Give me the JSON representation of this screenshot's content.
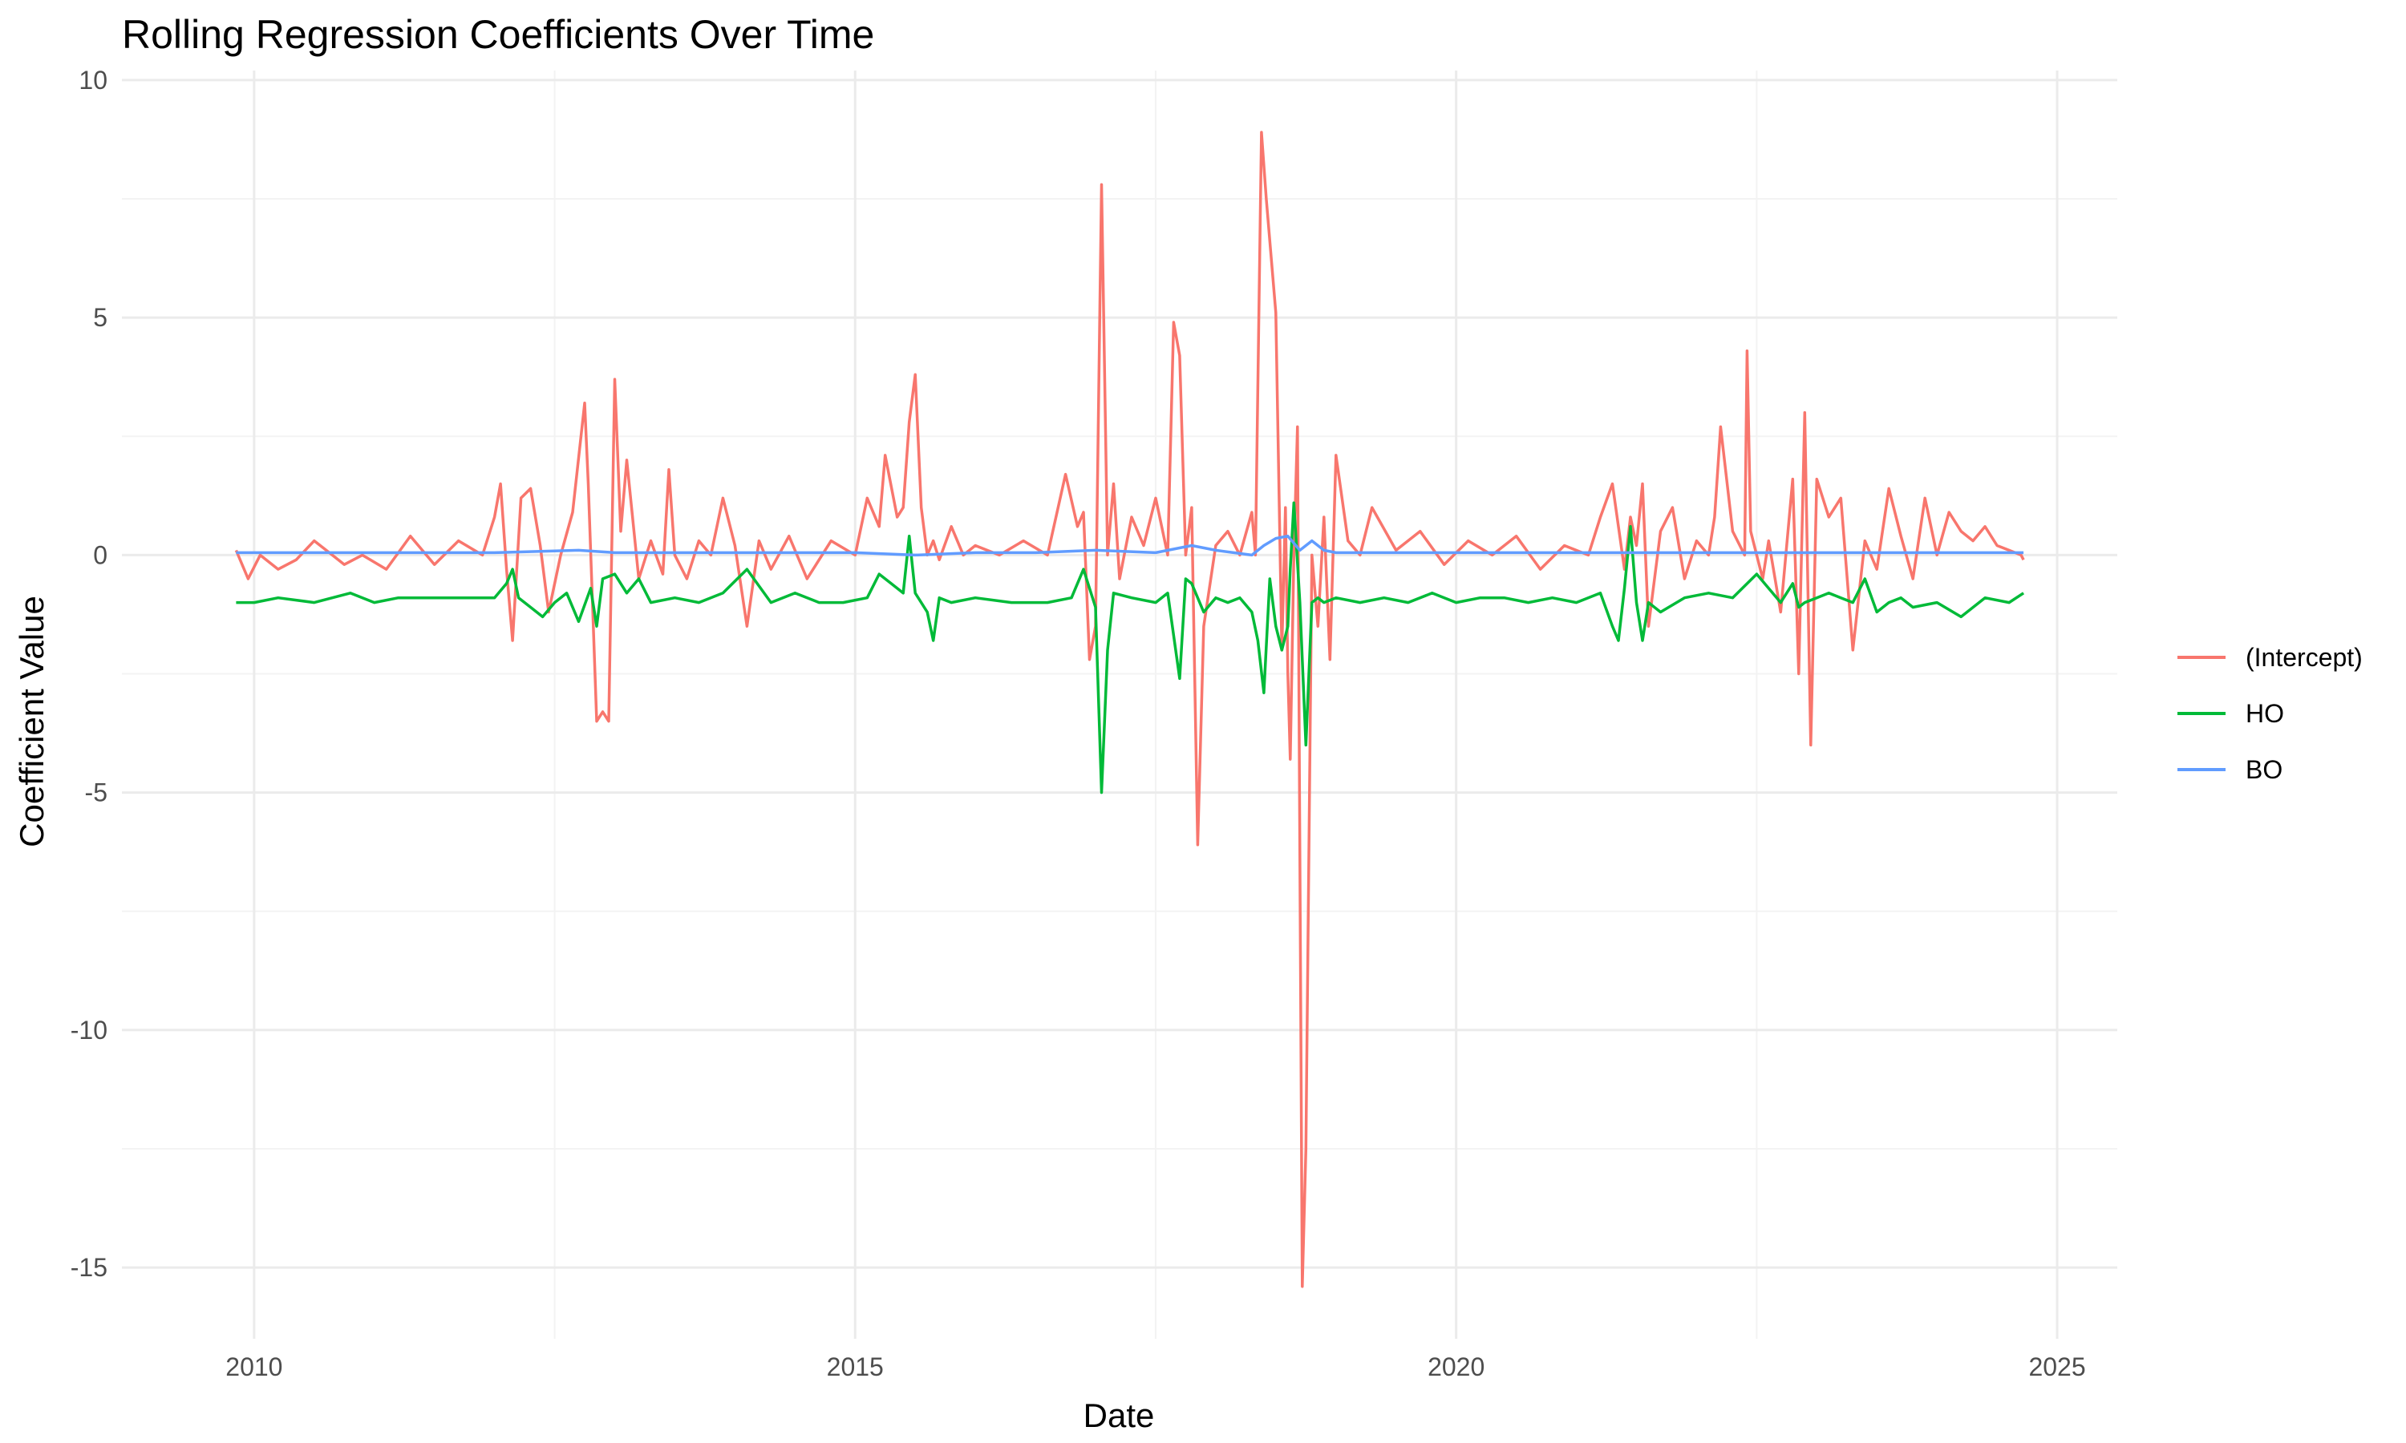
{
  "chart_data": {
    "type": "line",
    "title": "Rolling Regression Coefficients Over Time",
    "xlabel": "Date",
    "ylabel": "Coefficient Value",
    "xlim": [
      2008.9,
      2025.5
    ],
    "ylim": [
      -16.5,
      10.2
    ],
    "x_ticks": [
      2010,
      2015,
      2020,
      2025
    ],
    "x_tick_labels": [
      "2010",
      "2015",
      "2020",
      "2025"
    ],
    "y_ticks": [
      10,
      5,
      0,
      -5,
      -10,
      -15
    ],
    "y_tick_labels": [
      "10",
      "5",
      "0",
      "-5",
      "-10",
      "-15"
    ],
    "grid": true,
    "legend_position": "right",
    "series": [
      {
        "name": "(Intercept)",
        "color": "#F8766D",
        "x": [
          2009.85,
          2009.95,
          2010.05,
          2010.2,
          2010.35,
          2010.5,
          2010.6,
          2010.75,
          2010.9,
          2011.1,
          2011.3,
          2011.5,
          2011.7,
          2011.9,
          2012.0,
          2012.05,
          2012.1,
          2012.15,
          2012.22,
          2012.3,
          2012.38,
          2012.45,
          2012.55,
          2012.65,
          2012.75,
          2012.78,
          2012.85,
          2012.9,
          2012.95,
          2013.0,
          2013.05,
          2013.1,
          2013.2,
          2013.3,
          2013.4,
          2013.45,
          2013.5,
          2013.6,
          2013.7,
          2013.8,
          2013.9,
          2014.0,
          2014.1,
          2014.2,
          2014.3,
          2014.45,
          2014.6,
          2014.8,
          2015.0,
          2015.1,
          2015.2,
          2015.25,
          2015.35,
          2015.4,
          2015.45,
          2015.5,
          2015.55,
          2015.6,
          2015.65,
          2015.7,
          2015.8,
          2015.9,
          2016.0,
          2016.2,
          2016.4,
          2016.6,
          2016.75,
          2016.85,
          2016.9,
          2016.95,
          2017.0,
          2017.05,
          2017.1,
          2017.15,
          2017.2,
          2017.3,
          2017.4,
          2017.5,
          2017.6,
          2017.65,
          2017.7,
          2017.75,
          2017.8,
          2017.85,
          2017.9,
          2018.0,
          2018.1,
          2018.2,
          2018.3,
          2018.33,
          2018.38,
          2018.42,
          2018.5,
          2018.55,
          2018.58,
          2018.6,
          2018.62,
          2018.65,
          2018.68,
          2018.72,
          2018.75,
          2018.8,
          2018.85,
          2018.9,
          2018.95,
          2019.0,
          2019.1,
          2019.2,
          2019.3,
          2019.5,
          2019.7,
          2019.9,
          2020.1,
          2020.3,
          2020.5,
          2020.7,
          2020.9,
          2021.1,
          2021.2,
          2021.3,
          2021.4,
          2021.45,
          2021.5,
          2021.55,
          2021.6,
          2021.7,
          2021.8,
          2021.9,
          2022.0,
          2022.1,
          2022.15,
          2022.2,
          2022.3,
          2022.4,
          2022.42,
          2022.45,
          2022.5,
          2022.55,
          2022.6,
          2022.7,
          2022.8,
          2022.85,
          2022.9,
          2022.95,
          2023.0,
          2023.1,
          2023.2,
          2023.3,
          2023.4,
          2023.5,
          2023.6,
          2023.7,
          2023.8,
          2023.9,
          2024.0,
          2024.1,
          2024.2,
          2024.3,
          2024.4,
          2024.5,
          2024.6,
          2024.7,
          2024.72
        ],
        "values": [
          0.1,
          -0.5,
          0.0,
          -0.3,
          -0.1,
          0.3,
          0.1,
          -0.2,
          0.0,
          -0.3,
          0.4,
          -0.2,
          0.3,
          0.0,
          0.8,
          1.5,
          -0.3,
          -1.8,
          1.2,
          1.4,
          0.2,
          -1.2,
          0.0,
          0.9,
          3.2,
          1.5,
          -3.5,
          -3.3,
          -3.5,
          3.7,
          0.5,
          2.0,
          -0.5,
          0.3,
          -0.4,
          1.8,
          0.0,
          -0.5,
          0.3,
          0.0,
          1.2,
          0.2,
          -1.5,
          0.3,
          -0.3,
          0.4,
          -0.5,
          0.3,
          0.0,
          1.2,
          0.6,
          2.1,
          0.8,
          1.0,
          2.8,
          3.8,
          1.0,
          0.0,
          0.3,
          -0.1,
          0.6,
          0.0,
          0.2,
          0.0,
          0.3,
          0.0,
          1.7,
          0.6,
          0.9,
          -2.2,
          -1.5,
          7.8,
          0.0,
          1.5,
          -0.5,
          0.8,
          0.2,
          1.2,
          0.0,
          4.9,
          4.2,
          0.0,
          1.0,
          -6.1,
          -1.5,
          0.2,
          0.5,
          0.0,
          0.9,
          0.0,
          8.9,
          7.5,
          5.1,
          -2.0,
          1.0,
          -2.5,
          -4.3,
          0.0,
          2.7,
          -15.4,
          -12.5,
          0.0,
          -1.5,
          0.8,
          -2.2,
          2.1,
          0.3,
          0.0,
          1.0,
          0.1,
          0.5,
          -0.2,
          0.3,
          0.0,
          0.4,
          -0.3,
          0.2,
          0.0,
          0.8,
          1.5,
          -0.3,
          0.8,
          0.2,
          1.5,
          -1.5,
          0.5,
          1.0,
          -0.5,
          0.3,
          0.0,
          0.8,
          2.7,
          0.5,
          0.0,
          4.3,
          0.5,
          0.0,
          -0.5,
          0.3,
          -1.2,
          1.6,
          -2.5,
          3.0,
          -4.0,
          1.6,
          0.8,
          1.2,
          -2.0,
          0.3,
          -0.3,
          1.4,
          0.4,
          -0.5,
          1.2,
          0.0,
          0.9,
          0.5,
          0.3,
          0.6,
          0.2,
          0.1,
          0.0,
          -0.1
        ]
      },
      {
        "name": "HO",
        "color": "#00BA38",
        "x": [
          2009.85,
          2010.0,
          2010.2,
          2010.5,
          2010.8,
          2011.0,
          2011.2,
          2011.5,
          2011.8,
          2012.0,
          2012.1,
          2012.15,
          2012.2,
          2012.3,
          2012.4,
          2012.5,
          2012.6,
          2012.7,
          2012.8,
          2012.85,
          2012.9,
          2013.0,
          2013.1,
          2013.2,
          2013.3,
          2013.5,
          2013.7,
          2013.9,
          2014.1,
          2014.3,
          2014.5,
          2014.7,
          2014.9,
          2015.1,
          2015.2,
          2015.3,
          2015.4,
          2015.45,
          2015.5,
          2015.6,
          2015.65,
          2015.7,
          2015.8,
          2016.0,
          2016.3,
          2016.6,
          2016.8,
          2016.9,
          2017.0,
          2017.05,
          2017.1,
          2017.15,
          2017.3,
          2017.5,
          2017.6,
          2017.7,
          2017.75,
          2017.8,
          2017.9,
          2018.0,
          2018.1,
          2018.2,
          2018.3,
          2018.35,
          2018.4,
          2018.45,
          2018.5,
          2018.55,
          2018.6,
          2018.62,
          2018.65,
          2018.7,
          2018.75,
          2018.8,
          2018.85,
          2018.9,
          2019.0,
          2019.2,
          2019.4,
          2019.6,
          2019.8,
          2020.0,
          2020.2,
          2020.4,
          2020.6,
          2020.8,
          2021.0,
          2021.2,
          2021.3,
          2021.35,
          2021.4,
          2021.45,
          2021.5,
          2021.55,
          2021.6,
          2021.7,
          2021.9,
          2022.1,
          2022.3,
          2022.5,
          2022.7,
          2022.8,
          2022.85,
          2022.9,
          2023.0,
          2023.1,
          2023.2,
          2023.3,
          2023.4,
          2023.5,
          2023.6,
          2023.7,
          2023.8,
          2024.0,
          2024.2,
          2024.4,
          2024.6,
          2024.72
        ],
        "values": [
          -1.0,
          -1.0,
          -0.9,
          -1.0,
          -0.8,
          -1.0,
          -0.9,
          -0.9,
          -0.9,
          -0.9,
          -0.6,
          -0.3,
          -0.9,
          -1.1,
          -1.3,
          -1.0,
          -0.8,
          -1.4,
          -0.7,
          -1.5,
          -0.5,
          -0.4,
          -0.8,
          -0.5,
          -1.0,
          -0.9,
          -1.0,
          -0.8,
          -0.3,
          -1.0,
          -0.8,
          -1.0,
          -1.0,
          -0.9,
          -0.4,
          -0.6,
          -0.8,
          0.4,
          -0.8,
          -1.2,
          -1.8,
          -0.9,
          -1.0,
          -0.9,
          -1.0,
          -1.0,
          -0.9,
          -0.3,
          -1.1,
          -5.0,
          -2.0,
          -0.8,
          -0.9,
          -1.0,
          -0.8,
          -2.6,
          -0.5,
          -0.6,
          -1.2,
          -0.9,
          -1.0,
          -0.9,
          -1.2,
          -1.8,
          -2.9,
          -0.5,
          -1.5,
          -2.0,
          -1.5,
          -0.3,
          1.1,
          -1.0,
          -4.0,
          -1.0,
          -0.9,
          -1.0,
          -0.9,
          -1.0,
          -0.9,
          -1.0,
          -0.8,
          -1.0,
          -0.9,
          -0.9,
          -1.0,
          -0.9,
          -1.0,
          -0.8,
          -1.5,
          -1.8,
          -0.7,
          0.6,
          -1.0,
          -1.8,
          -1.0,
          -1.2,
          -0.9,
          -0.8,
          -0.9,
          -0.4,
          -1.0,
          -0.6,
          -1.1,
          -1.0,
          -0.9,
          -0.8,
          -0.9,
          -1.0,
          -0.5,
          -1.2,
          -1.0,
          -0.9,
          -1.1,
          -1.0,
          -1.3,
          -0.9,
          -1.0,
          -0.8
        ]
      },
      {
        "name": "BO",
        "color": "#619CFF",
        "x": [
          2009.85,
          2011.0,
          2012.0,
          2012.7,
          2013.0,
          2014.0,
          2015.0,
          2015.5,
          2016.0,
          2016.5,
          2017.0,
          2017.5,
          2017.8,
          2018.0,
          2018.3,
          2018.4,
          2018.5,
          2018.6,
          2018.7,
          2018.8,
          2018.9,
          2019.0,
          2020.0,
          2021.0,
          2022.0,
          2023.0,
          2024.0,
          2024.72
        ],
        "values": [
          0.05,
          0.05,
          0.05,
          0.1,
          0.05,
          0.05,
          0.05,
          0.0,
          0.05,
          0.05,
          0.1,
          0.05,
          0.2,
          0.1,
          0.0,
          0.2,
          0.35,
          0.4,
          0.1,
          0.3,
          0.1,
          0.05,
          0.05,
          0.05,
          0.05,
          0.05,
          0.05,
          0.05
        ]
      }
    ]
  }
}
